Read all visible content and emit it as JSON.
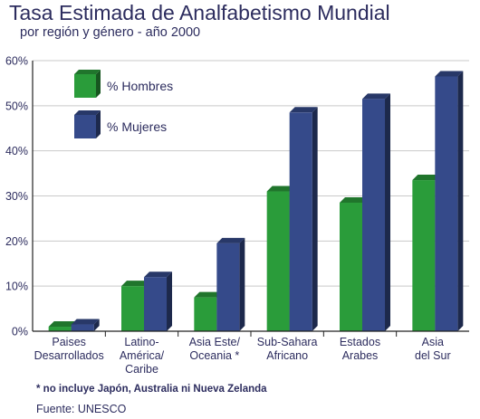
{
  "title": "Tasa Estimada de Analfabetismo Mundial",
  "subtitle": "por región y género - año 2000",
  "note": "* no incluye Japón, Australia ni Nueva Zelanda",
  "source": "Fuente:  UNESCO",
  "colors": {
    "hombres": "#2a9c3a",
    "mujeres": "#354a8a",
    "text": "#2c2c5e",
    "grid": "#c9c9c9"
  },
  "chart_data": {
    "type": "bar",
    "title": "Tasa Estimada de Analfabetismo Mundial",
    "subtitle": "por región y género - año 2000",
    "xlabel": "",
    "ylabel": "",
    "ylim": [
      0,
      60
    ],
    "yticks": [
      0,
      10,
      20,
      30,
      40,
      50,
      60
    ],
    "ytick_labels": [
      "0%",
      "10%",
      "20%",
      "30%",
      "40%",
      "50%",
      "60%"
    ],
    "grid": true,
    "legend_position": "top-left",
    "categories": [
      [
        "Paises",
        "Desarrollados"
      ],
      [
        "Latino-",
        "América/",
        "Caribe"
      ],
      [
        "Asia Este/",
        "Oceania *"
      ],
      [
        "Sub-Sahara",
        "Africano"
      ],
      [
        "Estados",
        "Arabes"
      ],
      [
        "Asia",
        "del Sur"
      ]
    ],
    "series": [
      {
        "name": "% Hombres",
        "values": [
          1,
          10,
          7.5,
          31,
          28.5,
          33.5
        ]
      },
      {
        "name": "% Mujeres",
        "values": [
          1.5,
          12,
          19.5,
          48.5,
          51.5,
          56.5
        ]
      }
    ]
  }
}
